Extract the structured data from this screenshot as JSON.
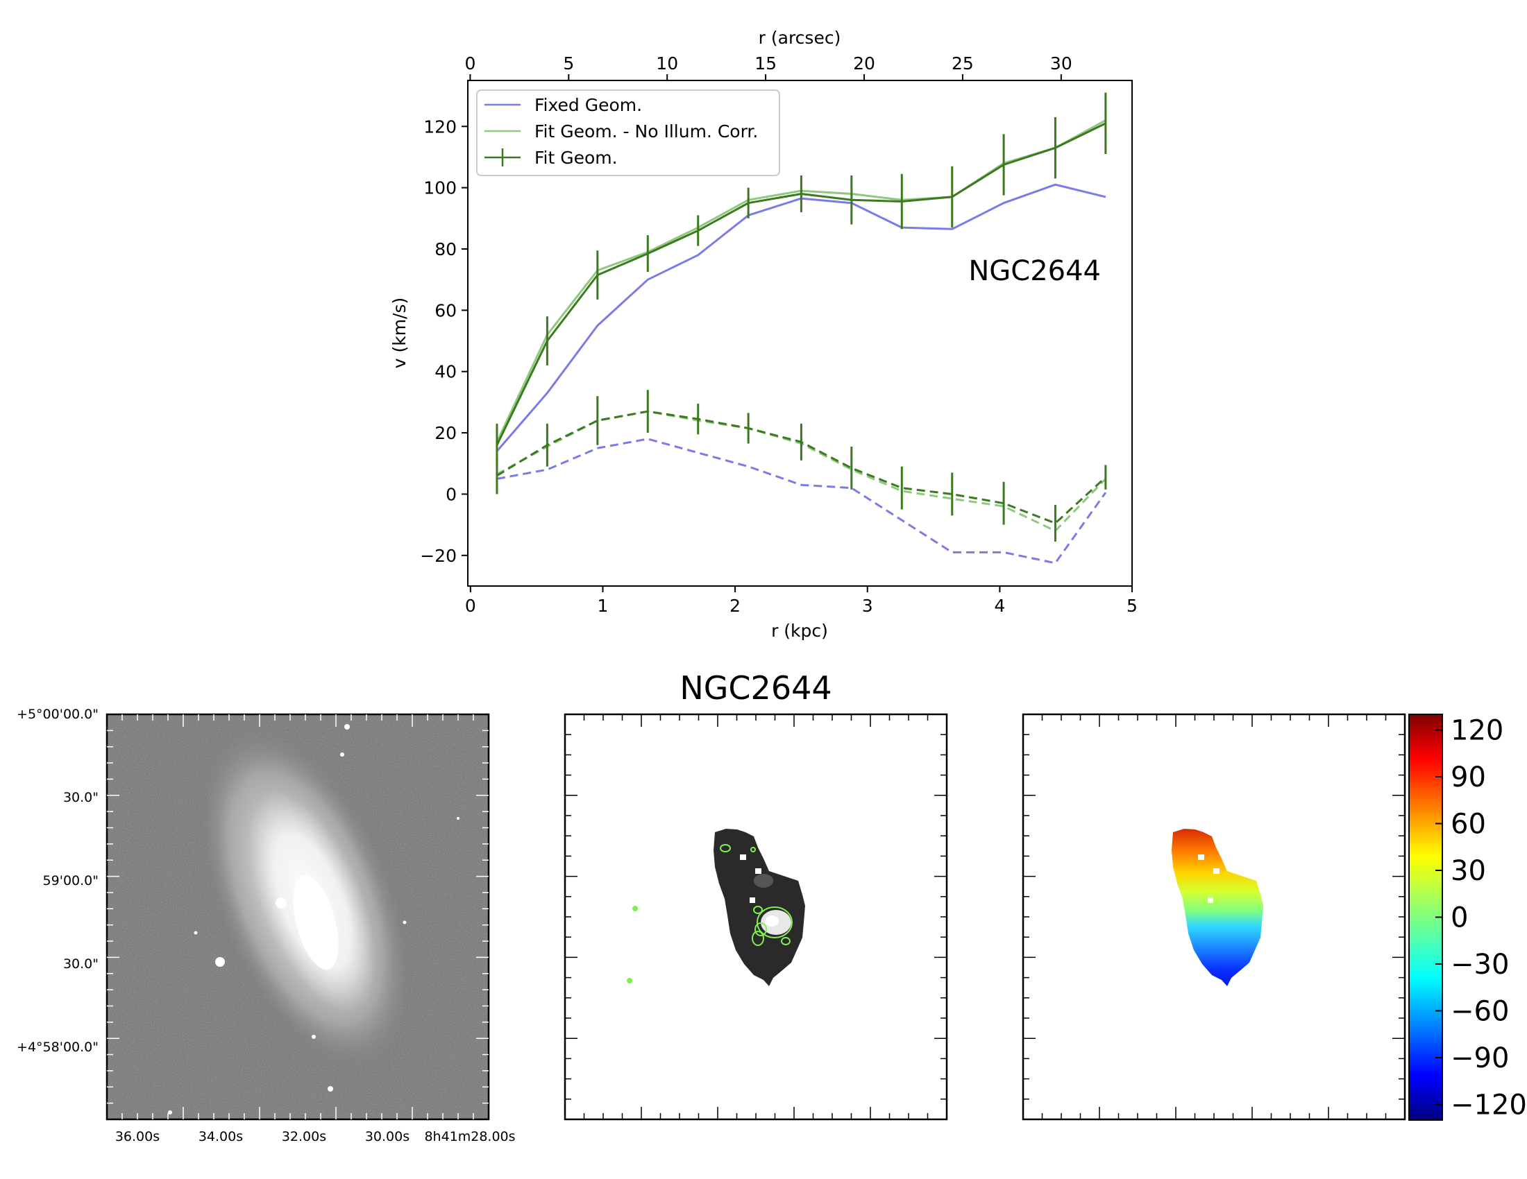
{
  "chart_data": [
    {
      "type": "line",
      "title": "",
      "annotation": "NGC2644",
      "xlabel": "r (kpc)",
      "ylabel": "v (km/s)",
      "top_xlabel": "r (arcsec)",
      "xlim": [
        -0.02,
        5.0
      ],
      "ylim": [
        -30,
        135
      ],
      "xticks": [
        0,
        1,
        2,
        3,
        4,
        5
      ],
      "yticks": [
        -20,
        0,
        20,
        40,
        60,
        80,
        100,
        120
      ],
      "top_xticks": [
        0,
        5,
        10,
        15,
        20,
        25,
        30
      ],
      "top_xlim": [
        -0.12,
        33.6
      ],
      "legend_position": "top-left",
      "colors": {
        "fixed": "#7b7be8",
        "nocorr": "#8fc87f",
        "fit": "#3b7a1e"
      },
      "x": [
        0.2,
        0.58,
        0.96,
        1.34,
        1.72,
        2.1,
        2.5,
        2.88,
        3.26,
        3.64,
        4.03,
        4.42,
        4.8
      ],
      "series": [
        {
          "name": "Fixed Geom.",
          "color": "#7b7be8",
          "dashed": false,
          "values": [
            14,
            33,
            55,
            70,
            78,
            91,
            96.5,
            95,
            87,
            86.5,
            95,
            101,
            97
          ]
        },
        {
          "name": "Fit Geom. - No Illum. Corr.",
          "color": "#8fc87f",
          "dashed": false,
          "values": [
            17,
            52,
            73,
            79,
            87,
            96,
            99,
            98,
            96,
            97,
            108,
            113,
            122
          ]
        },
        {
          "name": "Fit Geom.",
          "color": "#3b7a1e",
          "dashed": false,
          "values": [
            16,
            50,
            71.5,
            78.5,
            86,
            95,
            98,
            96,
            95.5,
            97,
            107.5,
            113,
            121
          ],
          "errors": [
            7,
            8,
            8,
            6,
            5,
            5,
            6,
            8,
            9,
            10,
            10,
            10,
            10
          ]
        },
        {
          "name": "",
          "color": "#7b7be8",
          "dashed": true,
          "values": [
            5,
            8,
            15,
            18,
            13.5,
            9,
            3,
            2,
            -8.5,
            -19,
            -19,
            -22.5,
            0.5
          ]
        },
        {
          "name": "",
          "color": "#8fc87f",
          "dashed": true,
          "values": [
            6.5,
            15.5,
            24,
            27,
            24,
            21.5,
            16.5,
            8,
            1,
            -1.5,
            -4,
            -12,
            5
          ]
        },
        {
          "name": "",
          "color": "#3b7a1e",
          "dashed": true,
          "values": [
            6,
            16,
            24,
            27,
            24.5,
            21.5,
            17,
            8.5,
            2,
            0,
            -3,
            -9.5,
            5.5
          ],
          "errors": [
            6,
            7,
            8,
            7,
            5,
            5,
            6,
            7,
            7,
            7,
            7,
            6,
            4
          ]
        }
      ]
    },
    {
      "type": "image",
      "description_free": true,
      "ra_ticks": [
        "36.00s",
        "34.00s",
        "32.00s",
        "30.00s",
        "8h41m28.00s"
      ],
      "dec_ticks": [
        "+5°00'00.0\"",
        "30.0\"",
        "59'00.0\"",
        "30.0\"",
        "+4°58'00.0\""
      ]
    },
    {
      "type": "image",
      "title": "NGC2644"
    },
    {
      "type": "heatmap",
      "colorbar_ticks": [
        120,
        90,
        60,
        30,
        0,
        -30,
        -60,
        -90,
        -120
      ],
      "colorbar_range": [
        -130,
        130
      ],
      "colormap": "jet"
    }
  ]
}
